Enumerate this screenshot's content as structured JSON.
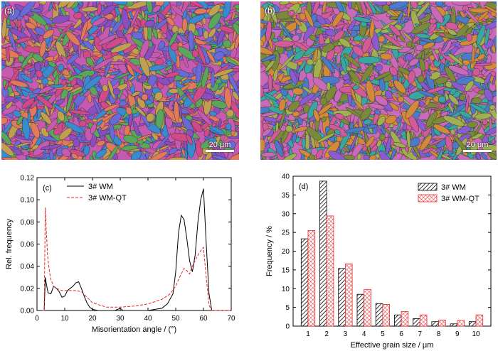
{
  "colors": {
    "wm": "#000000",
    "wmqt": "#e8262a",
    "micro_a": [
      "#c65ab0",
      "#6a6ad6",
      "#e07a5a",
      "#5aa65a",
      "#8a4ec0",
      "#d04a8a",
      "#3a8ad0",
      "#c0a050"
    ],
    "micro_b": [
      "#c86ab8",
      "#7a8a3a",
      "#3aa6a0",
      "#d08a3a",
      "#8a5ad0",
      "#d05a9a",
      "#4a7ac8",
      "#a0b050"
    ]
  },
  "panels": {
    "a": {
      "tag": "(a)",
      "scale_label": "20 μm"
    },
    "b": {
      "tag": "(b)",
      "scale_label": "20 μm"
    }
  },
  "chart_data": [
    {
      "type": "line",
      "panel_tag": "(c)",
      "xlabel": "Misorientation angle / (°)",
      "ylabel": "Rel. frequency",
      "xlim": [
        0,
        70
      ],
      "ylim": [
        0,
        0.12
      ],
      "xticks": [
        "0",
        "10",
        "20",
        "30",
        "40",
        "50",
        "60",
        "70"
      ],
      "yticks": [
        "0.00",
        "0.02",
        "0.04",
        "0.06",
        "0.08",
        "0.10",
        "0.12"
      ],
      "legend": "top-center",
      "series": [
        {
          "name": "3# WM",
          "style": "solid",
          "x": [
            2,
            2.6,
            3,
            3.5,
            4,
            5,
            6,
            7,
            8,
            9,
            10,
            11,
            12,
            13,
            14,
            15,
            16,
            17,
            18,
            19,
            20,
            22,
            25,
            28,
            30,
            31,
            32,
            35,
            40,
            45,
            47,
            49,
            50,
            51,
            52,
            53,
            54,
            55,
            56,
            57,
            58,
            59,
            60,
            61,
            62,
            63,
            65,
            70
          ],
          "y": [
            0,
            0,
            0.03,
            0.022,
            0.016,
            0.015,
            0.022,
            0.02,
            0.017,
            0.012,
            0.013,
            0.018,
            0.02,
            0.022,
            0.025,
            0.026,
            0.02,
            0.013,
            0.007,
            0.003,
            0.001,
            0,
            0,
            0,
            0.002,
            0,
            0,
            0,
            0,
            0.002,
            0.006,
            0.015,
            0.035,
            0.07,
            0.086,
            0.082,
            0.065,
            0.045,
            0.035,
            0.05,
            0.08,
            0.1,
            0.11,
            0.06,
            0.015,
            0,
            0,
            0
          ]
        },
        {
          "name": "3# WM-QT",
          "style": "dashed",
          "x": [
            2,
            2.6,
            3,
            3.3,
            3.8,
            4.5,
            5,
            6,
            7,
            8,
            9,
            10,
            12,
            14,
            16,
            18,
            20,
            25,
            30,
            35,
            40,
            45,
            48,
            50,
            51,
            52,
            53,
            54,
            55,
            56,
            57,
            58,
            59,
            60,
            61,
            62,
            63,
            65,
            70
          ],
          "y": [
            0,
            0,
            0.093,
            0.075,
            0.05,
            0.035,
            0.028,
            0.022,
            0.02,
            0.019,
            0.018,
            0.018,
            0.018,
            0.018,
            0.017,
            0.012,
            0.007,
            0.003,
            0.003,
            0.004,
            0.006,
            0.01,
            0.015,
            0.022,
            0.028,
            0.033,
            0.038,
            0.036,
            0.033,
            0.04,
            0.045,
            0.05,
            0.054,
            0.057,
            0.03,
            0.005,
            0,
            0,
            0
          ]
        }
      ]
    },
    {
      "type": "bar",
      "panel_tag": "(d)",
      "xlabel": "Effective grain size / μm",
      "ylabel": "Frequency / %",
      "categories": [
        "1",
        "2",
        "3",
        "4",
        "5",
        "6",
        "7",
        "8",
        "9",
        "10"
      ],
      "ylim": [
        0,
        40
      ],
      "yticks": [
        "0",
        "5",
        "10",
        "15",
        "20",
        "25",
        "30",
        "35",
        "40"
      ],
      "legend": "top-right",
      "series": [
        {
          "name": "3# WM",
          "pattern": "diagonal hatch",
          "values": [
            23.3,
            38.7,
            15.4,
            8.5,
            6.0,
            3.0,
            2.0,
            1.2,
            0.6,
            1.2
          ]
        },
        {
          "name": "3# WM-QT",
          "pattern": "red cross-hatch",
          "values": [
            25.5,
            29.4,
            16.6,
            9.8,
            5.8,
            3.9,
            3.0,
            1.6,
            1.5,
            3.0
          ]
        }
      ]
    }
  ]
}
